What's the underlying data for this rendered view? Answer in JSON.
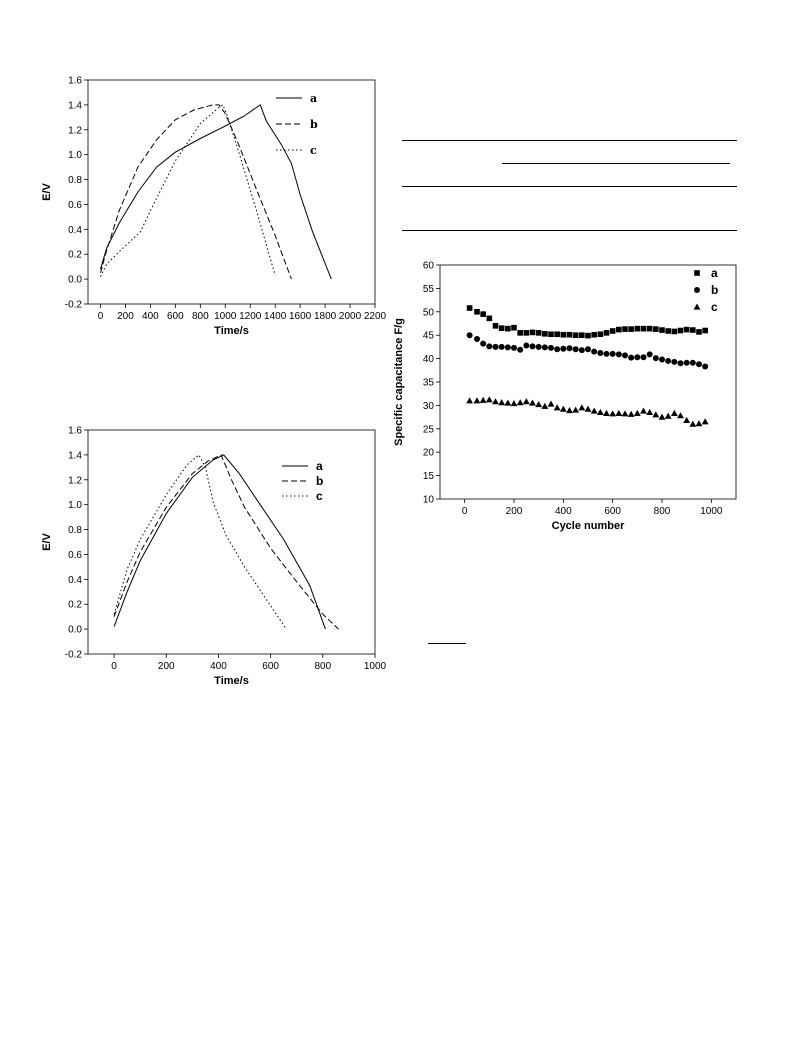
{
  "charts": [
    {
      "id": "chart1",
      "type": "line",
      "xlabel": "Time/s",
      "ylabel": "E/V",
      "xlim": [
        -100,
        2200
      ],
      "ylim": [
        -0.2,
        1.6
      ],
      "xticks": [
        0,
        200,
        400,
        600,
        800,
        1000,
        1200,
        1400,
        1600,
        1800,
        2000,
        2200
      ],
      "yticks": [
        -0.2,
        0.0,
        0.2,
        0.4,
        0.6,
        0.8,
        1.0,
        1.2,
        1.4,
        1.6
      ],
      "legend_position": "top-right",
      "series": [
        {
          "name": "a",
          "style": "solid",
          "points": [
            [
              0,
              0.08
            ],
            [
              50,
              0.25
            ],
            [
              150,
              0.45
            ],
            [
              300,
              0.7
            ],
            [
              450,
              0.9
            ],
            [
              600,
              1.02
            ],
            [
              800,
              1.13
            ],
            [
              1000,
              1.23
            ],
            [
              1150,
              1.31
            ],
            [
              1280,
              1.4
            ],
            [
              1330,
              1.27
            ],
            [
              1450,
              1.08
            ],
            [
              1530,
              0.93
            ],
            [
              1600,
              0.68
            ],
            [
              1700,
              0.38
            ],
            [
              1850,
              0.0
            ]
          ]
        },
        {
          "name": "b",
          "style": "dashed",
          "points": [
            [
              0,
              0.05
            ],
            [
              40,
              0.2
            ],
            [
              150,
              0.55
            ],
            [
              300,
              0.9
            ],
            [
              450,
              1.12
            ],
            [
              600,
              1.28
            ],
            [
              750,
              1.36
            ],
            [
              900,
              1.4
            ],
            [
              950,
              1.4
            ],
            [
              1000,
              1.33
            ],
            [
              1100,
              1.1
            ],
            [
              1250,
              0.72
            ],
            [
              1400,
              0.35
            ],
            [
              1530,
              0.0
            ]
          ]
        },
        {
          "name": "c",
          "style": "dotted",
          "points": [
            [
              0,
              0.02
            ],
            [
              50,
              0.12
            ],
            [
              150,
              0.22
            ],
            [
              320,
              0.38
            ],
            [
              400,
              0.55
            ],
            [
              600,
              0.95
            ],
            [
              800,
              1.25
            ],
            [
              950,
              1.38
            ],
            [
              980,
              1.4
            ],
            [
              1010,
              1.33
            ],
            [
              1100,
              1.05
            ],
            [
              1250,
              0.55
            ],
            [
              1400,
              0.03
            ]
          ]
        }
      ]
    },
    {
      "id": "chart2",
      "type": "line",
      "xlabel": "Time/s",
      "ylabel": "E/V",
      "xlim": [
        -100,
        1000
      ],
      "ylim": [
        -0.2,
        1.6
      ],
      "xticks": [
        0,
        200,
        400,
        600,
        800,
        1000
      ],
      "yticks": [
        -0.2,
        0.0,
        0.2,
        0.4,
        0.6,
        0.8,
        1.0,
        1.2,
        1.4,
        1.6
      ],
      "legend_position": "top-right",
      "series": [
        {
          "name": "a",
          "style": "solid",
          "points": [
            [
              0,
              0.02
            ],
            [
              50,
              0.3
            ],
            [
              100,
              0.55
            ],
            [
              200,
              0.93
            ],
            [
              300,
              1.22
            ],
            [
              380,
              1.36
            ],
            [
              420,
              1.4
            ],
            [
              480,
              1.25
            ],
            [
              560,
              1.0
            ],
            [
              650,
              0.72
            ],
            [
              750,
              0.35
            ],
            [
              810,
              0.0
            ]
          ]
        },
        {
          "name": "b",
          "style": "dashed",
          "points": [
            [
              0,
              0.1
            ],
            [
              50,
              0.38
            ],
            [
              100,
              0.62
            ],
            [
              200,
              0.98
            ],
            [
              300,
              1.25
            ],
            [
              360,
              1.35
            ],
            [
              410,
              1.4
            ],
            [
              450,
              1.2
            ],
            [
              500,
              0.98
            ],
            [
              600,
              0.65
            ],
            [
              700,
              0.38
            ],
            [
              800,
              0.12
            ],
            [
              860,
              0.0
            ]
          ]
        },
        {
          "name": "c",
          "style": "dotted",
          "points": [
            [
              0,
              0.12
            ],
            [
              50,
              0.48
            ],
            [
              100,
              0.72
            ],
            [
              200,
              1.08
            ],
            [
              280,
              1.32
            ],
            [
              325,
              1.4
            ],
            [
              350,
              1.3
            ],
            [
              380,
              1.02
            ],
            [
              430,
              0.75
            ],
            [
              500,
              0.5
            ],
            [
              580,
              0.25
            ],
            [
              660,
              0.0
            ]
          ]
        }
      ]
    },
    {
      "id": "chart3",
      "type": "scatter",
      "xlabel": "Cycle number",
      "ylabel": "Specific capacitance F/g",
      "xlim": [
        -100,
        1100
      ],
      "ylim": [
        10,
        60
      ],
      "xticks": [
        0,
        200,
        400,
        600,
        800,
        1000
      ],
      "yticks": [
        10,
        15,
        20,
        25,
        30,
        35,
        40,
        45,
        50,
        55,
        60
      ],
      "legend_position": "top-right",
      "series": [
        {
          "name": "a",
          "marker": "square",
          "x": [
            20,
            50,
            75,
            100,
            125,
            150,
            175,
            200,
            225,
            250,
            275,
            300,
            325,
            350,
            375,
            400,
            425,
            450,
            475,
            500,
            525,
            550,
            575,
            600,
            625,
            650,
            675,
            700,
            725,
            750,
            775,
            800,
            825,
            850,
            875,
            900,
            925,
            950,
            975
          ],
          "y": [
            50.8,
            50.0,
            49.5,
            48.6,
            47.0,
            46.5,
            46.4,
            46.6,
            45.5,
            45.5,
            45.6,
            45.5,
            45.3,
            45.2,
            45.2,
            45.1,
            45.1,
            45.0,
            45.0,
            44.9,
            45.1,
            45.2,
            45.5,
            45.9,
            46.2,
            46.3,
            46.3,
            46.4,
            46.4,
            46.4,
            46.3,
            46.1,
            45.9,
            45.8,
            46.0,
            46.2,
            46.1,
            45.7,
            46.0
          ]
        },
        {
          "name": "b",
          "marker": "circle",
          "x": [
            20,
            50,
            75,
            100,
            125,
            150,
            175,
            200,
            225,
            250,
            275,
            300,
            325,
            350,
            375,
            400,
            425,
            450,
            475,
            500,
            525,
            550,
            575,
            600,
            625,
            650,
            675,
            700,
            725,
            750,
            775,
            800,
            825,
            850,
            875,
            900,
            925,
            950,
            975
          ],
          "y": [
            45.0,
            44.2,
            43.2,
            42.6,
            42.5,
            42.5,
            42.4,
            42.3,
            41.9,
            42.8,
            42.6,
            42.5,
            42.4,
            42.3,
            42.0,
            42.1,
            42.2,
            42.0,
            41.8,
            42.0,
            41.5,
            41.2,
            41.0,
            41.0,
            40.9,
            40.7,
            40.2,
            40.3,
            40.3,
            40.9,
            40.1,
            39.8,
            39.5,
            39.3,
            39.0,
            39.1,
            39.1,
            38.8,
            38.3
          ]
        },
        {
          "name": "c",
          "marker": "triangle",
          "x": [
            20,
            50,
            75,
            100,
            125,
            150,
            175,
            200,
            225,
            250,
            275,
            300,
            325,
            350,
            375,
            400,
            425,
            450,
            475,
            500,
            525,
            550,
            575,
            600,
            625,
            650,
            675,
            700,
            725,
            750,
            775,
            800,
            825,
            850,
            875,
            900,
            925,
            950,
            975
          ],
          "y": [
            31.0,
            31.0,
            31.1,
            31.2,
            30.8,
            30.6,
            30.5,
            30.4,
            30.6,
            30.8,
            30.5,
            30.2,
            29.8,
            30.3,
            29.5,
            29.2,
            28.9,
            29.0,
            29.5,
            29.2,
            28.8,
            28.5,
            28.3,
            28.2,
            28.3,
            28.2,
            28.1,
            28.3,
            28.8,
            28.5,
            28.0,
            27.5,
            27.7,
            28.3,
            27.8,
            26.8,
            26.0,
            26.1,
            26.5
          ]
        }
      ]
    }
  ]
}
